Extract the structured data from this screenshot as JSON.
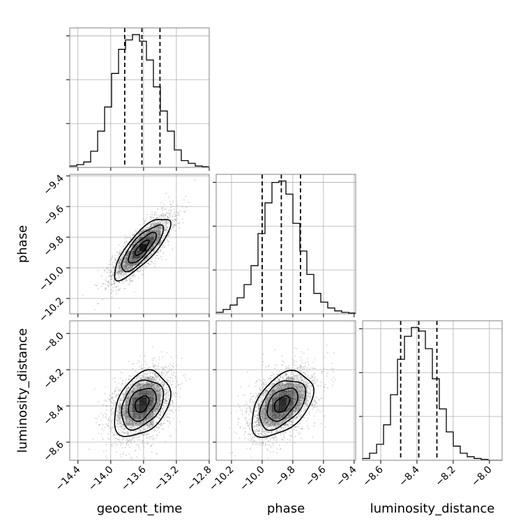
{
  "chart_data": {
    "type": "corner",
    "parameters": [
      "geocent_time",
      "phase",
      "luminosity_distance"
    ],
    "axes": {
      "geocent_time": {
        "label": "geocent_time",
        "range": [
          -14.5,
          -12.8
        ],
        "ticks": [
          -14.4,
          -14.0,
          -13.6,
          -13.2,
          -12.8
        ],
        "tick_labels": [
          "−14.4",
          "−14.0",
          "−13.6",
          "−13.2",
          "−12.8"
        ]
      },
      "phase": {
        "label": "phase",
        "range": [
          -10.3,
          -9.39
        ],
        "ticks": [
          -10.2,
          -10.0,
          -9.8,
          -9.6,
          -9.4
        ],
        "tick_labels": [
          "−10.2",
          "−10.0",
          "−9.8",
          "−9.6",
          "−9.4"
        ]
      },
      "luminosity_distance": {
        "label": "luminosity_distance",
        "range": [
          -8.7,
          -7.93
        ],
        "ticks": [
          -8.6,
          -8.4,
          -8.2,
          -8.0
        ],
        "tick_labels": [
          "−8.6",
          "−8.4",
          "−8.2",
          "−8.0"
        ]
      }
    },
    "histograms": [
      {
        "param": "geocent_time",
        "bin_edges": [
          -14.5,
          -14.415,
          -14.33,
          -14.245,
          -14.16,
          -14.075,
          -13.99,
          -13.905,
          -13.82,
          -13.735,
          -13.65,
          -13.565,
          -13.48,
          -13.395,
          -13.31,
          -13.225,
          -13.14,
          -13.055,
          -12.97,
          -12.885,
          -12.8
        ],
        "counts": [
          1,
          2,
          4,
          12,
          27,
          45,
          70,
          88,
          95,
          99,
          94,
          80,
          60,
          42,
          27,
          13,
          5,
          3,
          1,
          0.5
        ],
        "quantiles": [
          -13.83,
          -13.62,
          -13.4
        ]
      },
      {
        "param": "phase",
        "bin_edges": [
          -10.3,
          -10.2545,
          -10.209,
          -10.1635,
          -10.118,
          -10.0725,
          -10.027,
          -9.9815,
          -9.936,
          -9.8905,
          -9.845,
          -9.7995,
          -9.754,
          -9.7085,
          -9.663,
          -9.6175,
          -9.572,
          -9.5265,
          -9.481,
          -9.4355,
          -9.39
        ],
        "counts": [
          1,
          3,
          6,
          11,
          20,
          33,
          55,
          76,
          90,
          91,
          82,
          62,
          43,
          27,
          14,
          8,
          4,
          2,
          1,
          0.5
        ],
        "quantiles": [
          -10.0,
          -9.875,
          -9.75
        ]
      },
      {
        "param": "luminosity_distance",
        "bin_edges": [
          -8.7,
          -8.6615,
          -8.623,
          -8.5845,
          -8.546,
          -8.5075,
          -8.469,
          -8.4305,
          -8.392,
          -8.3535,
          -8.315,
          -8.2765,
          -8.238,
          -8.1995,
          -8.161,
          -8.1225,
          -8.084,
          -8.0455,
          -8.007,
          -7.9685,
          -7.93
        ],
        "counts": [
          1,
          4,
          9,
          20,
          37,
          57,
          70,
          75,
          73,
          63,
          46,
          29,
          16,
          8,
          4,
          2,
          1,
          0.5,
          0,
          0
        ],
        "quantiles": [
          -8.49,
          -8.39,
          -8.29
        ]
      }
    ],
    "pairs": [
      {
        "x": "geocent_time",
        "y": "phase",
        "center": [
          -13.62,
          -9.87
        ],
        "sigma": [
          0.17,
          0.1
        ],
        "rho": 0.8,
        "samples": 3000
      },
      {
        "x": "geocent_time",
        "y": "luminosity_distance",
        "center": [
          -13.62,
          -8.39
        ],
        "sigma": [
          0.17,
          0.09
        ],
        "rho": 0.35,
        "samples": 3000
      },
      {
        "x": "phase",
        "y": "luminosity_distance",
        "center": [
          -9.87,
          -8.39
        ],
        "sigma": [
          0.1,
          0.09
        ],
        "rho": 0.45,
        "samples": 3000
      }
    ],
    "contour_levels": [
      0.5,
      1.0,
      1.5,
      2.0
    ],
    "grid": true,
    "colors": {
      "line": "#000000",
      "points": "#9a9a9a",
      "grid": "#b0b0b0",
      "frame": "#808080",
      "density": "#000000"
    }
  }
}
